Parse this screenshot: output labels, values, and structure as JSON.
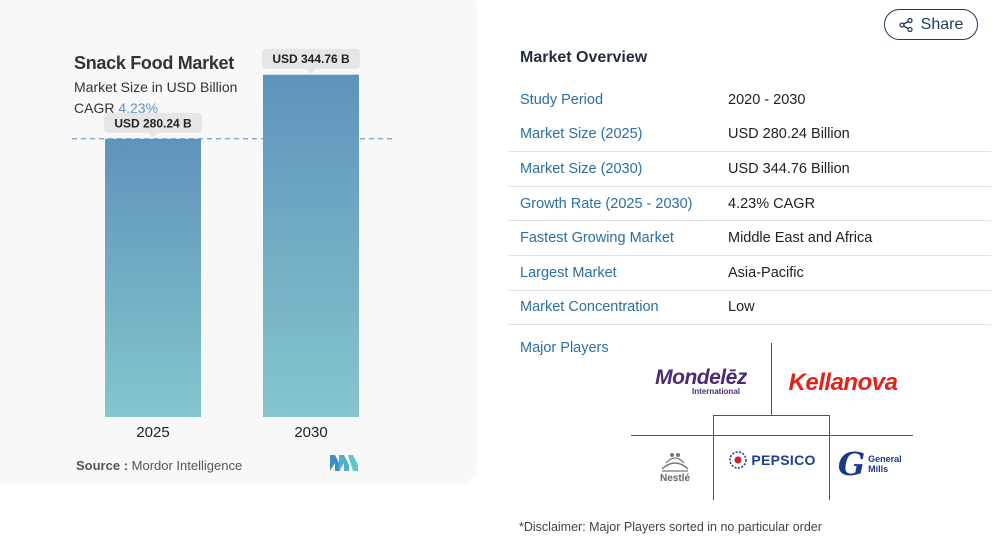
{
  "share": {
    "label": "Share",
    "icon": "share-icon"
  },
  "chart": {
    "title": "Snack Food Market",
    "subtitle": "Market Size in USD Billion",
    "cagr_label": "CAGR",
    "cagr_value": "4.23%",
    "source_label": "Source :",
    "source_value": "Mordor Intelligence",
    "bar_labels": [
      "USD 280.24 B",
      "USD 344.76 B"
    ]
  },
  "chart_data": {
    "type": "bar",
    "title": "Snack Food Market",
    "subtitle": "Market Size in USD Billion",
    "categories": [
      "2025",
      "2030"
    ],
    "values": [
      280.24,
      344.76
    ],
    "data_labels": [
      "USD 280.24 B",
      "USD 344.76 B"
    ],
    "ylim": [
      0,
      350
    ],
    "reference_line_at": 280.24,
    "grid": false,
    "colors": {
      "bar_top": "#5f93bb",
      "bar_bottom": "#84c6cc",
      "reference_line": "#5a8fc4"
    }
  },
  "overview": {
    "title": "Market Overview",
    "rows": [
      {
        "key": "Study Period",
        "value": "2020 - 2030"
      },
      {
        "key": "Market Size (2025)",
        "value": "USD 280.24 Billion"
      },
      {
        "key": "Market Size (2030)",
        "value": "USD 344.76 Billion"
      },
      {
        "key": "Growth Rate (2025 - 2030)",
        "value": "4.23% CAGR"
      },
      {
        "key": "Fastest Growing Market",
        "value": "Middle East and Africa"
      },
      {
        "key": "Largest Market",
        "value": "Asia-Pacific"
      },
      {
        "key": "Market Concentration",
        "value": "Low"
      }
    ],
    "major_players_label": "Major Players",
    "players": {
      "mondelez": "Mondelēz",
      "mondelez_sub": "International",
      "kellanova": "Kellanova",
      "nestle": "Nestlé",
      "pepsico": "PEPSICO",
      "general_mills": "General Mills"
    },
    "disclaimer": "*Disclaimer: Major Players sorted in no particular order"
  },
  "colors": {
    "accent": "#2a6fa5",
    "cagr": "#5a8fc4",
    "mondelez": "#4b2a7b",
    "kellanova": "#e2231a",
    "pepsico": "#1c3f94",
    "general_mills": "#1a3a8c"
  }
}
